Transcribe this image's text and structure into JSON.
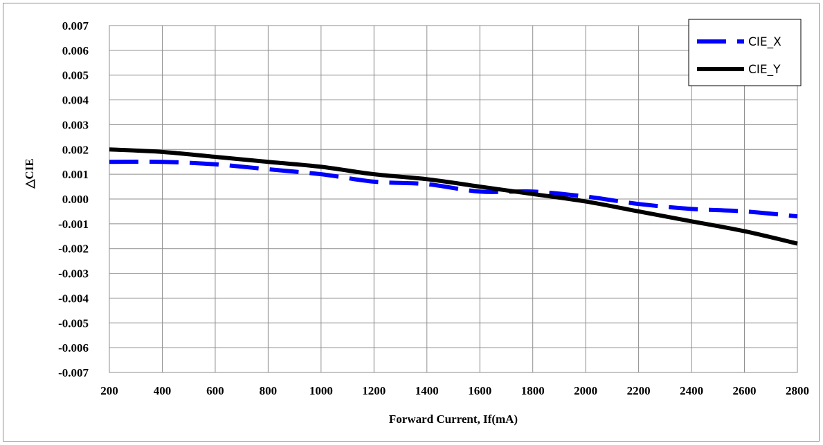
{
  "chart_data": {
    "type": "line",
    "title": "",
    "xlabel": "Forward Current, If(mA)",
    "ylabel": "△CIE",
    "xlim": [
      200,
      2800
    ],
    "ylim": [
      -0.007,
      0.007
    ],
    "x_ticks": [
      "200",
      "400",
      "600",
      "800",
      "1000",
      "1200",
      "1400",
      "1600",
      "1800",
      "2000",
      "2200",
      "2400",
      "2600",
      "2800"
    ],
    "y_ticks": [
      "0.007",
      "0.006",
      "0.005",
      "0.004",
      "0.003",
      "0.002",
      "0.001",
      "0.000",
      "-0.001",
      "-0.002",
      "-0.003",
      "-0.004",
      "-0.005",
      "-0.006",
      "-0.007"
    ],
    "grid": true,
    "legend_position": "top-right",
    "series": [
      {
        "name": "CIE_X",
        "color": "#0000ff",
        "style": "dashed",
        "x": [
          200,
          400,
          600,
          800,
          1000,
          1200,
          1400,
          1600,
          1800,
          2000,
          2200,
          2400,
          2600,
          2800
        ],
        "y": [
          0.0015,
          0.0015,
          0.0014,
          0.0012,
          0.001,
          0.0007,
          0.0006,
          0.0003,
          0.0003,
          0.0001,
          -0.0002,
          -0.0004,
          -0.0005,
          -0.0007
        ]
      },
      {
        "name": "CIE_Y",
        "color": "#000000",
        "style": "solid",
        "x": [
          200,
          400,
          600,
          800,
          1000,
          1200,
          1400,
          1600,
          1800,
          2000,
          2200,
          2400,
          2600,
          2800
        ],
        "y": [
          0.002,
          0.0019,
          0.0017,
          0.0015,
          0.0013,
          0.001,
          0.0008,
          0.0005,
          0.0002,
          -0.0001,
          -0.0005,
          -0.0009,
          -0.0013,
          -0.0018
        ]
      }
    ]
  }
}
